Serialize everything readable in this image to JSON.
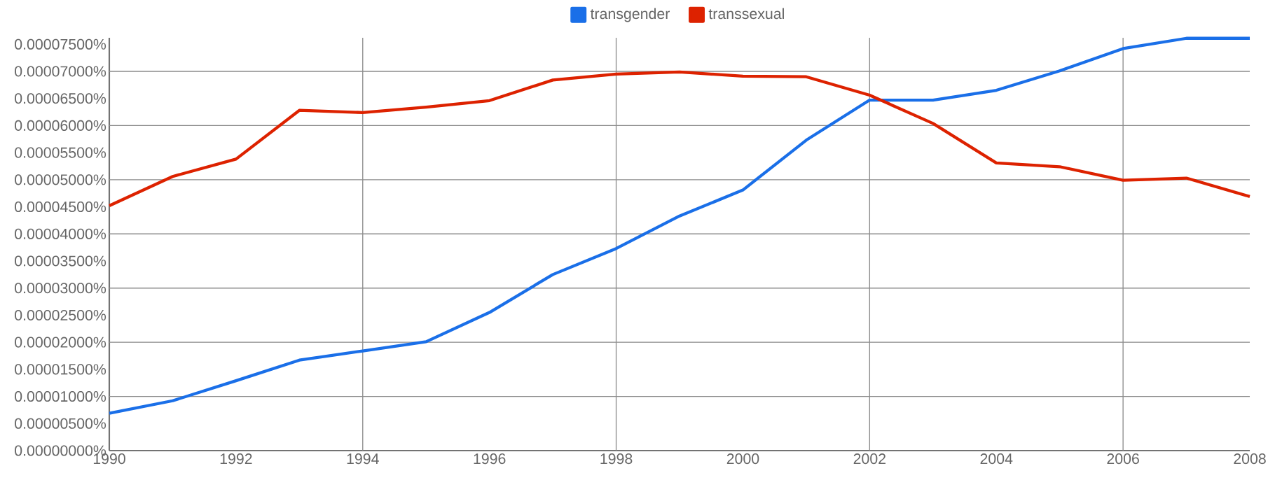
{
  "chart_data": {
    "type": "line",
    "x": [
      1990,
      1991,
      1992,
      1993,
      1994,
      1995,
      1996,
      1997,
      1998,
      1999,
      2000,
      2001,
      2002,
      2003,
      2004,
      2005,
      2006,
      2007,
      2008
    ],
    "series": [
      {
        "name": "transgender",
        "color": "#1a6fe8",
        "values": [
          6.9e-06,
          9.2e-06,
          1.29e-05,
          1.67e-05,
          1.84e-05,
          2.01e-05,
          2.55e-05,
          3.25e-05,
          3.73e-05,
          4.33e-05,
          4.81e-05,
          5.73e-05,
          6.47e-05,
          6.47e-05,
          6.65e-05,
          7.01e-05,
          7.42e-05,
          7.61e-05,
          7.61e-05
        ]
      },
      {
        "name": "transsexual",
        "color": "#dd2200",
        "values": [
          4.52e-05,
          5.06e-05,
          5.38e-05,
          6.28e-05,
          6.24e-05,
          6.34e-05,
          6.46e-05,
          6.84e-05,
          6.95e-05,
          6.99e-05,
          6.91e-05,
          6.9e-05,
          6.56e-05,
          6.04e-05,
          5.31e-05,
          5.24e-05,
          4.99e-05,
          5.03e-05,
          4.69e-05
        ]
      }
    ],
    "xlim": [
      1990,
      2008
    ],
    "xticks": [
      1990,
      1992,
      1994,
      1996,
      1998,
      2000,
      2002,
      2004,
      2006,
      2008
    ],
    "ylim": [
      0,
      7.62e-05
    ],
    "yticks": [
      {
        "value": 0,
        "label": "0.00000000%"
      },
      {
        "value": 5e-06,
        "label": "0.00000500%"
      },
      {
        "value": 1e-05,
        "label": "0.00001000%"
      },
      {
        "value": 1.5e-05,
        "label": "0.00001500%"
      },
      {
        "value": 2e-05,
        "label": "0.00002000%"
      },
      {
        "value": 2.5e-05,
        "label": "0.00002500%"
      },
      {
        "value": 3e-05,
        "label": "0.00003000%"
      },
      {
        "value": 3.5e-05,
        "label": "0.00003500%"
      },
      {
        "value": 4e-05,
        "label": "0.00004000%"
      },
      {
        "value": 4.5e-05,
        "label": "0.00004500%"
      },
      {
        "value": 5e-05,
        "label": "0.00005000%"
      },
      {
        "value": 5.5e-05,
        "label": "0.00005500%"
      },
      {
        "value": 6e-05,
        "label": "0.00006000%"
      },
      {
        "value": 6.5e-05,
        "label": "0.00006500%"
      },
      {
        "value": 7e-05,
        "label": "0.00007000%"
      },
      {
        "value": 7.5e-05,
        "label": "0.00007500%"
      }
    ],
    "grid": true,
    "legend": "top",
    "marker": "none",
    "line_style": "solid"
  }
}
